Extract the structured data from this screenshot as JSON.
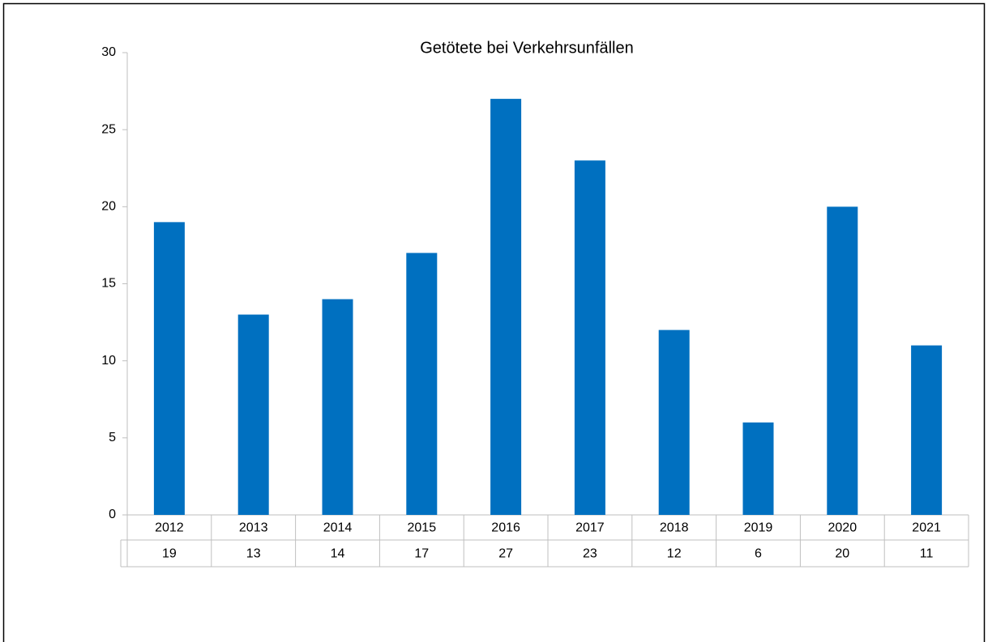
{
  "chart_data": {
    "type": "bar",
    "title": "Getötete bei Verkehrsunfällen",
    "categories": [
      "2012",
      "2013",
      "2014",
      "2015",
      "2016",
      "2017",
      "2018",
      "2019",
      "2020",
      "2021"
    ],
    "values": [
      19,
      13,
      14,
      17,
      27,
      23,
      12,
      6,
      20,
      11
    ],
    "color": "#0070c0",
    "ylim": [
      0,
      30
    ],
    "yticks": [
      0,
      5,
      10,
      15,
      20,
      25,
      30
    ],
    "grid": false,
    "data_table": true
  }
}
